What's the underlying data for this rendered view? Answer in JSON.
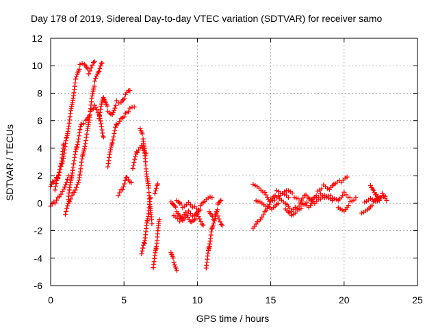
{
  "chart_data": {
    "type": "scatter",
    "title": "Day 178 of 2019, Sidereal Day-to-day VTEC variation (SDTVAR) for receiver samo",
    "xlabel": "GPS time / hours",
    "ylabel": "SDTVAR / TECUs",
    "xlim": [
      0,
      25
    ],
    "ylim": [
      -6,
      12
    ],
    "x_ticks": [
      0,
      5,
      10,
      15,
      20,
      25
    ],
    "y_ticks": [
      -6,
      -4,
      -2,
      0,
      2,
      4,
      6,
      8,
      10,
      12
    ],
    "x_tick_labels": [
      "0",
      "5",
      "10",
      "15",
      "20",
      "25"
    ],
    "y_tick_labels": [
      "-6",
      "-4",
      "-2",
      "0",
      "2",
      "4",
      "6",
      "8",
      "10",
      "12"
    ],
    "grid": true,
    "marker": "plus",
    "series": [
      {
        "name": "SDTVAR",
        "color": "#ff0000",
        "segments": [
          {
            "x": [
              0.0,
              0.2,
              0.5,
              0.8,
              1.1,
              1.4,
              1.7,
              2.0,
              2.3,
              2.6,
              3.0
            ],
            "y": [
              1.2,
              1.6,
              2.0,
              3.0,
              4.8,
              6.8,
              8.9,
              10.0,
              10.1,
              9.5,
              10.3
            ]
          },
          {
            "x": [
              0.0,
              0.3,
              0.6,
              0.9,
              1.2
            ],
            "y": [
              -0.2,
              0.1,
              0.6,
              1.1,
              2.0
            ]
          },
          {
            "x": [
              1.0,
              1.3,
              1.6,
              1.9,
              2.2,
              2.5,
              2.8,
              3.0,
              3.3,
              3.5
            ],
            "y": [
              -0.8,
              0.2,
              0.9,
              1.6,
              3.5,
              5.2,
              7.5,
              8.8,
              9.6,
              10.2
            ]
          },
          {
            "x": [
              1.2,
              1.5,
              1.8,
              2.1,
              2.4,
              2.7,
              3.0,
              3.3,
              3.6
            ],
            "y": [
              0.3,
              2.5,
              4.2,
              5.8,
              6.0,
              6.6,
              7.0,
              6.4,
              4.8
            ]
          },
          {
            "x": [
              0.3,
              0.5,
              0.7,
              0.9
            ],
            "y": [
              1.0,
              1.9,
              2.8,
              4.3
            ]
          },
          {
            "x": [
              3.3,
              3.6,
              3.9,
              4.2,
              4.5,
              4.8,
              5.1,
              5.4
            ],
            "y": [
              6.2,
              7.8,
              6.8,
              6.5,
              7.4,
              7.2,
              7.8,
              8.2
            ]
          },
          {
            "x": [
              3.9,
              4.2,
              4.5,
              4.8,
              5.1,
              5.4,
              5.7
            ],
            "y": [
              2.7,
              4.5,
              5.8,
              6.2,
              6.5,
              6.8,
              7.0
            ]
          },
          {
            "x": [
              4.6,
              4.9,
              5.2,
              5.5
            ],
            "y": [
              0.6,
              1.1,
              2.0,
              1.5
            ]
          },
          {
            "x": [
              5.6,
              5.9,
              6.2,
              6.5
            ],
            "y": [
              2.6,
              3.8,
              4.3,
              3.6
            ]
          },
          {
            "x": [
              6.1,
              6.3,
              6.5,
              6.7,
              6.9
            ],
            "y": [
              5.5,
              4.8,
              2.6,
              0.8,
              -1.5
            ]
          },
          {
            "x": [
              6.2,
              6.4,
              6.6,
              6.8
            ],
            "y": [
              -3.6,
              -2.8,
              -1.2,
              0.4
            ]
          },
          {
            "x": [
              7.0,
              7.2,
              7.4
            ],
            "y": [
              -4.6,
              -3.2,
              -1.2
            ]
          },
          {
            "x": [
              7.1,
              7.3
            ],
            "y": [
              0.8,
              1.4
            ]
          },
          {
            "x": [
              8.2,
              8.4,
              8.6
            ],
            "y": [
              -3.5,
              -4.2,
              -4.9
            ]
          },
          {
            "x": [
              8.2,
              8.6,
              9.0,
              9.4,
              9.8,
              10.2,
              10.6,
              11.0
            ],
            "y": [
              0.2,
              -0.5,
              -1.2,
              -0.6,
              -1.0,
              -0.3,
              0.2,
              0.4
            ]
          },
          {
            "x": [
              8.4,
              8.8,
              9.2,
              9.6,
              10.0,
              10.4
            ],
            "y": [
              -0.8,
              -1.2,
              -0.6,
              -1.4,
              -0.9,
              -1.6
            ]
          },
          {
            "x": [
              8.6,
              9.0,
              9.4,
              9.8,
              10.2
            ],
            "y": [
              0.3,
              -0.2,
              0.1,
              -0.3,
              -0.5
            ]
          },
          {
            "x": [
              10.6,
              10.8,
              11.0,
              11.2,
              11.4,
              11.6
            ],
            "y": [
              -4.6,
              -3.2,
              -1.8,
              -1.0,
              -0.2,
              0.2
            ]
          },
          {
            "x": [
              10.8,
              11.1,
              11.4,
              11.7
            ],
            "y": [
              -0.5,
              -1.1,
              -0.9,
              -1.6
            ]
          },
          {
            "x": [
              13.8,
              14.2,
              14.6,
              15.0,
              15.4,
              15.8,
              16.2
            ],
            "y": [
              -1.7,
              -1.2,
              -0.6,
              0.2,
              0.8,
              0.6,
              0.4
            ]
          },
          {
            "x": [
              13.8,
              14.2,
              14.6,
              15.0,
              15.4,
              15.8,
              16.2,
              16.6,
              17.0,
              17.4,
              17.8,
              18.2,
              18.6,
              19.0,
              19.4,
              19.8,
              20.2
            ],
            "y": [
              1.5,
              1.2,
              0.8,
              0.1,
              0.3,
              0.6,
              0.9,
              0.5,
              0.2,
              0.7,
              0.3,
              0.8,
              1.2,
              0.9,
              1.4,
              1.6,
              1.9
            ]
          },
          {
            "x": [
              14.0,
              14.4,
              14.8,
              15.2,
              15.6,
              16.0,
              16.4,
              16.8,
              17.2,
              17.6,
              18.0,
              18.4,
              18.8,
              19.2
            ],
            "y": [
              0.3,
              0.1,
              -0.2,
              -0.4,
              0.2,
              -0.1,
              -0.6,
              -0.3,
              0.1,
              -0.2,
              0.4,
              0.6,
              0.3,
              0.2
            ]
          },
          {
            "x": [
              16.0,
              16.4,
              16.8,
              17.2,
              17.6,
              18.0,
              18.4,
              18.8,
              19.2,
              19.6,
              20.0,
              20.4
            ],
            "y": [
              -0.3,
              -0.8,
              -0.5,
              -0.2,
              0.2,
              -0.1,
              0.3,
              0.6,
              0.5,
              0.3,
              0.8,
              0.4
            ]
          },
          {
            "x": [
              19.6,
              20.0,
              20.4,
              20.8
            ],
            "y": [
              -0.2,
              -0.5,
              0.1,
              0.4
            ]
          },
          {
            "x": [
              21.2,
              21.6,
              22.0,
              22.4,
              22.8
            ],
            "y": [
              -0.6,
              -0.4,
              0.1,
              0.3,
              0.5
            ]
          },
          {
            "x": [
              21.4,
              21.8,
              22.2,
              22.6,
              22.9
            ],
            "y": [
              0.2,
              0.4,
              0.3,
              0.6,
              0.2
            ]
          },
          {
            "x": [
              21.8,
              22.0,
              22.2,
              22.4
            ],
            "y": [
              1.4,
              1.0,
              0.6,
              0.2
            ]
          }
        ]
      }
    ]
  }
}
